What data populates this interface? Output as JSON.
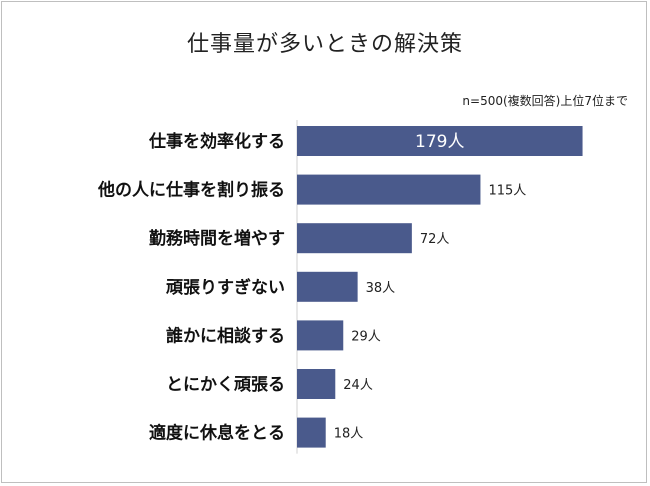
{
  "chart_data": {
    "type": "bar",
    "orientation": "horizontal",
    "title": "仕事量が多いときの解決策",
    "note": "n=500(複数回答)上位7位まで",
    "categories": [
      "仕事を効率化する",
      "他の人に仕事を割り振る",
      "勤務時間を増やす",
      "頑張りすぎない",
      "誰かに相談する",
      "とにかく頑張る",
      "適度に休息をとる"
    ],
    "values": [
      179,
      115,
      72,
      38,
      29,
      24,
      18
    ],
    "value_labels": [
      "179人",
      "115人",
      "72人",
      "38人",
      "29人",
      "24人",
      "18人"
    ],
    "unit": "人",
    "bar_color": "#4a5a8c",
    "xlim": [
      0,
      210
    ],
    "grid": false,
    "legend": "none"
  }
}
